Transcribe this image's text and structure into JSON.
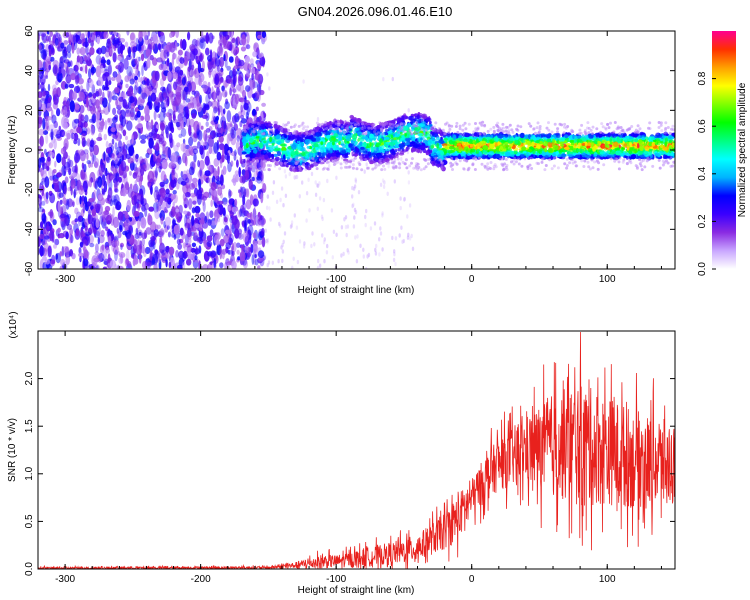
{
  "title": "GN04.2026.096.01.46.E10",
  "colors": {
    "line": "#e8211d",
    "axis": "#000000",
    "scatter_base": "#7a22e0"
  },
  "chart_data": [
    {
      "type": "heatmap",
      "name": "spectrogram",
      "xlabel": "Height of straight line (km)",
      "ylabel": "Frequency (Hz)",
      "xlim": [
        -320,
        150
      ],
      "ylim": [
        -60,
        60
      ],
      "x_ticks": [
        -300,
        -200,
        -100,
        0,
        100
      ],
      "x_tick_labels": [
        "-300",
        "-200",
        "-100",
        "0",
        "100"
      ],
      "y_ticks": [
        -60,
        -40,
        -20,
        0,
        20,
        40,
        60
      ],
      "y_tick_labels": [
        "-60",
        "-40",
        "-20",
        "0",
        "20",
        "40",
        "60"
      ],
      "noise_region_x": [
        -320,
        -153
      ],
      "signal_band": {
        "x_start": -168,
        "x_end": 150,
        "center_hz": 2,
        "half_width_hz": 6
      },
      "colorbar": {
        "label": "Normalized spectral amplitude",
        "range": [
          0.0,
          1.0
        ],
        "ticks": [
          0.0,
          0.2,
          0.4,
          0.6,
          0.8
        ],
        "tick_labels": [
          "0.0",
          "0.2",
          "0.4",
          "0.6",
          "0.8"
        ],
        "stops": [
          "#ffffff",
          "#c9a6ff",
          "#8a2be2",
          "#3a00ff",
          "#0000ff",
          "#00b4ff",
          "#00ffff",
          "#00ff80",
          "#00ff00",
          "#80ff00",
          "#ffff00",
          "#ffa000",
          "#ff3000",
          "#ff0090"
        ]
      }
    },
    {
      "type": "line",
      "name": "snr",
      "xlabel": "Height of straight line (km)",
      "ylabel": "SNR (10 * v/v)",
      "scale_label": "(x10⁴)",
      "xlim": [
        -320,
        150
      ],
      "ylim": [
        0.0,
        2.5
      ],
      "x_ticks": [
        -300,
        -200,
        -100,
        0,
        100
      ],
      "x_tick_labels": [
        "-300",
        "-200",
        "-100",
        "0",
        "100"
      ],
      "y_ticks": [
        0.0,
        0.5,
        1.0,
        1.5,
        2.0
      ],
      "y_tick_labels": [
        "0.0",
        "0.5",
        "1.0",
        "1.5",
        "2.0"
      ],
      "envelope": {
        "x": [
          -320,
          -150,
          -130,
          -110,
          -100,
          -80,
          -60,
          -40,
          -20,
          -10,
          0,
          10,
          20,
          40,
          60,
          80,
          100,
          120,
          150
        ],
        "max": [
          0.03,
          0.04,
          0.1,
          0.22,
          0.2,
          0.3,
          0.38,
          0.48,
          0.75,
          1.0,
          1.1,
          1.4,
          1.6,
          1.9,
          2.3,
          2.5,
          2.3,
          2.1,
          1.9
        ],
        "mean": [
          0.01,
          0.015,
          0.04,
          0.08,
          0.08,
          0.12,
          0.16,
          0.22,
          0.4,
          0.55,
          0.75,
          0.95,
          1.1,
          1.25,
          1.3,
          1.3,
          1.25,
          1.15,
          1.1
        ]
      }
    }
  ]
}
